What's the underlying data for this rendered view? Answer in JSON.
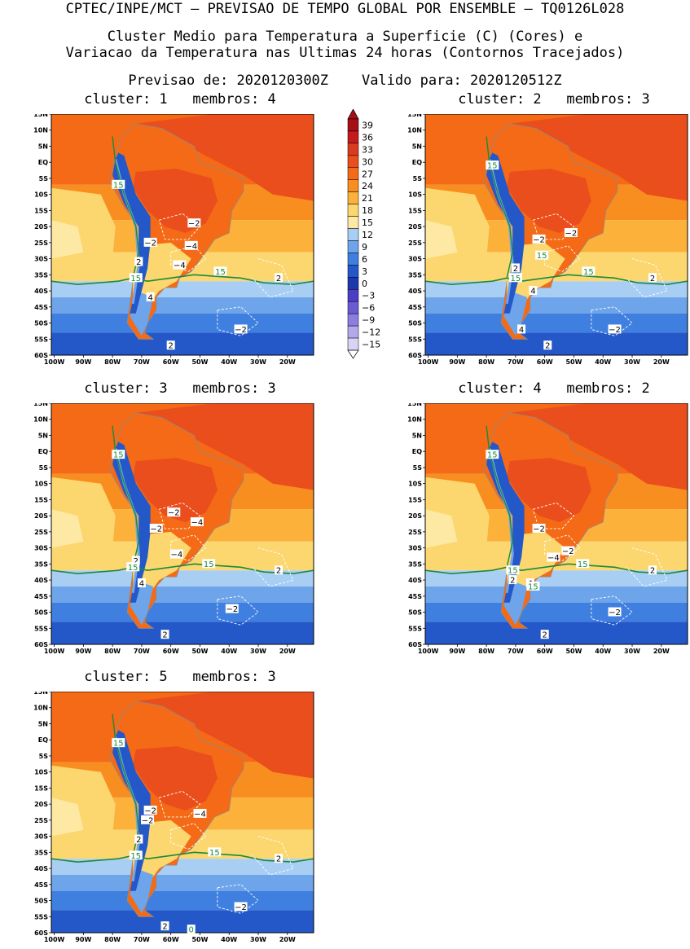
{
  "header": {
    "line1": "CPTEC/INPE/MCT — PREVISAO DE TEMPO GLOBAL POR ENSEMBLE — TQ0126L028",
    "line2": "Cluster Medio para Temperatura a Superficie (C) (Cores) e",
    "line3": "Variacao da Temperatura nas Ultimas 24 horas (Contornos Tracejados)",
    "line4": "Previsao de: 2020120300Z    Valido para: 2020120512Z"
  },
  "axes": {
    "lat_labels": [
      "15N",
      "10N",
      "5N",
      "EQ",
      "5S",
      "10S",
      "15S",
      "20S",
      "25S",
      "30S",
      "35S",
      "40S",
      "45S",
      "50S",
      "55S",
      "60S"
    ],
    "lon_labels": [
      "100W",
      "90W",
      "80W",
      "70W",
      "60W",
      "50W",
      "40W",
      "30W",
      "20W"
    ]
  },
  "colorbar": {
    "labels": [
      "39",
      "36",
      "33",
      "30",
      "27",
      "24",
      "21",
      "18",
      "15",
      "12",
      "9",
      "6",
      "3",
      "0",
      "−3",
      "−6",
      "−9",
      "−12",
      "−15"
    ],
    "colors": [
      "#a50f15",
      "#c41a1c",
      "#d93b20",
      "#ea4e1c",
      "#f46a16",
      "#f98e20",
      "#fbb13a",
      "#fcd770",
      "#fde9a3",
      "#a9cef4",
      "#6ea5ea",
      "#3f7fdf",
      "#2458c8",
      "#1c38ad",
      "#4b3dc4",
      "#6a5bd3",
      "#8b7ee0",
      "#b2a8ec",
      "#d9d3f6"
    ]
  },
  "panels": [
    {
      "title": "cluster: 1   membros: 4",
      "labels": [
        {
          "t": "15",
          "c": "g",
          "lon": -78,
          "lat": -7
        },
        {
          "t": "−2",
          "c": "k",
          "lon": -52,
          "lat": -19
        },
        {
          "t": "−2",
          "c": "k",
          "lon": -67,
          "lat": -25
        },
        {
          "t": "−4",
          "c": "k",
          "lon": -53,
          "lat": -26
        },
        {
          "t": "−4",
          "c": "k",
          "lon": -57,
          "lat": -32
        },
        {
          "t": "2",
          "c": "k",
          "lon": -71,
          "lat": -31
        },
        {
          "t": "15",
          "c": "g",
          "lon": -72,
          "lat": -36
        },
        {
          "t": "15",
          "c": "g",
          "lon": -43,
          "lat": -34
        },
        {
          "t": "2",
          "c": "k",
          "lon": -23,
          "lat": -36
        },
        {
          "t": "4",
          "c": "k",
          "lon": -67,
          "lat": -42
        },
        {
          "t": "−2",
          "c": "k",
          "lon": -36,
          "lat": -52
        },
        {
          "t": "2",
          "c": "k",
          "lon": -60,
          "lat": -57
        }
      ]
    },
    {
      "title": "cluster: 2   membros: 3",
      "labels": [
        {
          "t": "15",
          "c": "g",
          "lon": -78,
          "lat": -1
        },
        {
          "t": "−2",
          "c": "k",
          "lon": -51,
          "lat": -22
        },
        {
          "t": "−2",
          "c": "k",
          "lon": -62,
          "lat": -24
        },
        {
          "t": "15",
          "c": "g",
          "lon": -61,
          "lat": -29
        },
        {
          "t": "2",
          "c": "k",
          "lon": -70,
          "lat": -33
        },
        {
          "t": "15",
          "c": "g",
          "lon": -70,
          "lat": -36
        },
        {
          "t": "15",
          "c": "g",
          "lon": -45,
          "lat": -34
        },
        {
          "t": "2",
          "c": "k",
          "lon": -23,
          "lat": -36
        },
        {
          "t": "4",
          "c": "k",
          "lon": -64,
          "lat": -40
        },
        {
          "t": "4",
          "c": "k",
          "lon": -68,
          "lat": -52
        },
        {
          "t": "−2",
          "c": "k",
          "lon": -36,
          "lat": -52
        },
        {
          "t": "2",
          "c": "k",
          "lon": -59,
          "lat": -57
        }
      ]
    },
    {
      "title": "cluster: 3   membros: 3",
      "labels": [
        {
          "t": "15",
          "c": "g",
          "lon": -78,
          "lat": -1
        },
        {
          "t": "−2",
          "c": "k",
          "lon": -59,
          "lat": -19
        },
        {
          "t": "−4",
          "c": "k",
          "lon": -51,
          "lat": -22
        },
        {
          "t": "−2",
          "c": "k",
          "lon": -65,
          "lat": -24
        },
        {
          "t": "−4",
          "c": "k",
          "lon": -58,
          "lat": -32
        },
        {
          "t": "2",
          "c": "k",
          "lon": -72,
          "lat": -34
        },
        {
          "t": "15",
          "c": "g",
          "lon": -73,
          "lat": -36
        },
        {
          "t": "15",
          "c": "g",
          "lon": -47,
          "lat": -35
        },
        {
          "t": "2",
          "c": "k",
          "lon": -23,
          "lat": -37
        },
        {
          "t": "4",
          "c": "k",
          "lon": -70,
          "lat": -41
        },
        {
          "t": "−2",
          "c": "k",
          "lon": -39,
          "lat": -49
        },
        {
          "t": "2",
          "c": "k",
          "lon": -62,
          "lat": -57
        }
      ]
    },
    {
      "title": "cluster: 4   membros: 2",
      "labels": [
        {
          "t": "15",
          "c": "g",
          "lon": -78,
          "lat": -1
        },
        {
          "t": "−2",
          "c": "k",
          "lon": -62,
          "lat": -24
        },
        {
          "t": "−2",
          "c": "k",
          "lon": -52,
          "lat": -31
        },
        {
          "t": "−4",
          "c": "k",
          "lon": -57,
          "lat": -33
        },
        {
          "t": "15",
          "c": "g",
          "lon": -71,
          "lat": -37
        },
        {
          "t": "2",
          "c": "k",
          "lon": -71,
          "lat": -40
        },
        {
          "t": "15",
          "c": "g",
          "lon": -47,
          "lat": -35
        },
        {
          "t": "2",
          "c": "k",
          "lon": -23,
          "lat": -37
        },
        {
          "t": "4",
          "c": "k",
          "lon": -65,
          "lat": -41
        },
        {
          "t": "15",
          "c": "g",
          "lon": -64,
          "lat": -42
        },
        {
          "t": "−2",
          "c": "k",
          "lon": -36,
          "lat": -50
        },
        {
          "t": "2",
          "c": "k",
          "lon": -60,
          "lat": -57
        }
      ]
    },
    {
      "title": "cluster: 5   membros: 3",
      "labels": [
        {
          "t": "15",
          "c": "g",
          "lon": -78,
          "lat": -1
        },
        {
          "t": "−2",
          "c": "k",
          "lon": -67,
          "lat": -22
        },
        {
          "t": "−4",
          "c": "k",
          "lon": -50,
          "lat": -23
        },
        {
          "t": "−2",
          "c": "k",
          "lon": -68,
          "lat": -25
        },
        {
          "t": "2",
          "c": "k",
          "lon": -71,
          "lat": -31
        },
        {
          "t": "15",
          "c": "g",
          "lon": -72,
          "lat": -36
        },
        {
          "t": "15",
          "c": "g",
          "lon": -45,
          "lat": -35
        },
        {
          "t": "2",
          "c": "k",
          "lon": -23,
          "lat": -37
        },
        {
          "t": "−2",
          "c": "k",
          "lon": -36,
          "lat": -52
        },
        {
          "t": "2",
          "c": "k",
          "lon": -62,
          "lat": -58
        },
        {
          "t": "0",
          "c": "g",
          "lon": -53,
          "lat": -59
        }
      ]
    }
  ]
}
